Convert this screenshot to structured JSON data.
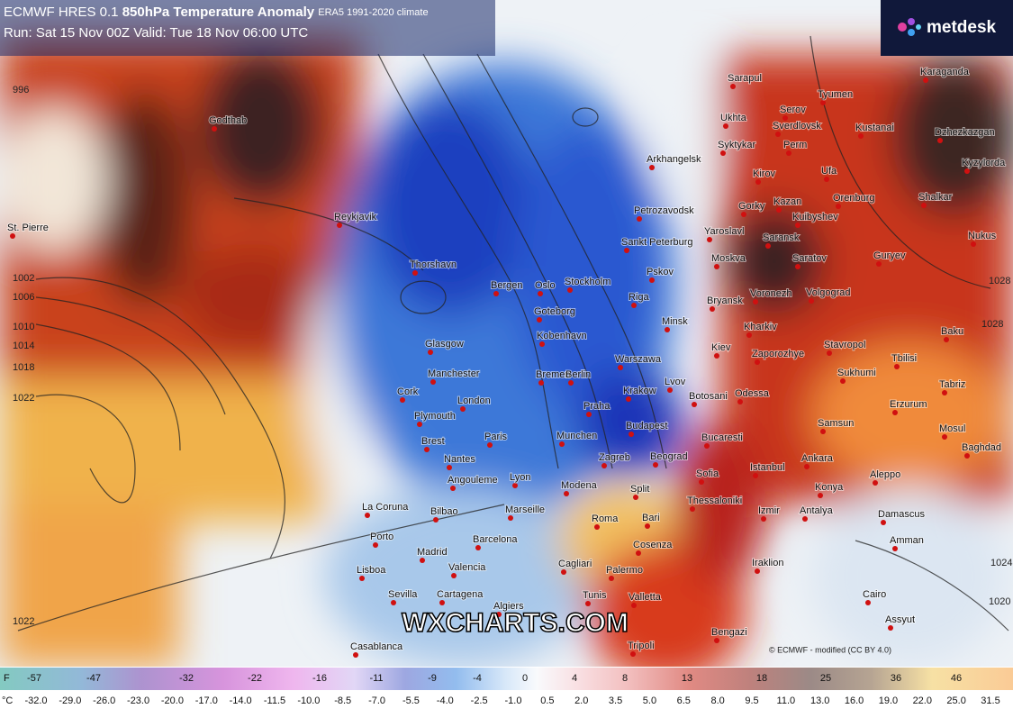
{
  "header": {
    "model": "ECMWF HRES 0.1",
    "title": "850hPa Temperature Anomaly",
    "climate": "ERA5 1991-2020 climate",
    "run": "Run: Sat 15 Nov 00Z Valid: Tue 18 Nov 06:00 UTC"
  },
  "logo": "metdesk",
  "watermark": "WXCHARTS.COM",
  "credit": "© ECMWF - modified (CC BY 4.0)",
  "cities": [
    "Sarapul",
    "Tyumen",
    "Karaganda",
    "Serov",
    "Ukhta",
    "Sverdlovsk",
    "Kustanai",
    "Dzhezkazgan",
    "Syktykar",
    "Perm",
    "Arkhangelsk",
    "Kyzylorda",
    "Kirov",
    "Ufa",
    "Kazan",
    "Orenburg",
    "Shalkar",
    "Petrozavodsk",
    "Gorky",
    "Kuibyshev",
    "Reykjavik",
    "St. Pierre",
    "Yaroslavl",
    "Sankt Peterburg",
    "Saransk",
    "Nukus",
    "Moskva",
    "Saratov",
    "Guryev",
    "Pskov",
    "Thorshavn",
    "Bergen",
    "Oslo",
    "Stockholm",
    "Riga",
    "Bryansk",
    "Voronezh",
    "Volgograd",
    "Goteborg",
    "Minsk",
    "Kharkiv",
    "Kobenhavn",
    "Glasgow",
    "Kiev",
    "Zaporozhye",
    "Stavropol",
    "Baku",
    "Manchester",
    "Bremen",
    "Berlin",
    "Warszawa",
    "Lvov",
    "Odessa",
    "Sukhumi",
    "Tbilisi",
    "Cork",
    "London",
    "Krakow",
    "Botosani",
    "Tabriz",
    "Plymouth",
    "Praha",
    "Erzurum",
    "Budapest",
    "Samsun",
    "Mosul",
    "Brest",
    "Paris",
    "Munchen",
    "Bucaresti",
    "Baghdad",
    "Nantes",
    "Zagreb",
    "Beograd",
    "Ankara",
    "Sofia",
    "Istanbul",
    "Angouleme",
    "Lyon",
    "Modena",
    "Split",
    "Aleppo",
    "Konya",
    "Thessaloniki",
    "Izmir",
    "Antalya",
    "La Coruna",
    "Bilbao",
    "Marseille",
    "Roma",
    "Bari",
    "Damascus",
    "Porto",
    "Barcelona",
    "Cosenza",
    "Amman",
    "Madrid",
    "Cagliari",
    "Palermo",
    "Iraklion",
    "Lisboa",
    "Valencia",
    "Sevilla",
    "Cartagena",
    "Tunis",
    "Valletta",
    "Cairo",
    "Algiers",
    "Assyut",
    "Casablanca",
    "Tripoli",
    "Bengazi",
    "Godthab"
  ],
  "isobar_labels": [
    "996",
    "1002",
    "1006",
    "1010",
    "1014",
    "1018",
    "1022",
    "1022",
    "1028",
    "1028",
    "1024",
    "1020"
  ],
  "legend": {
    "f_unit": "F",
    "f_labels": [
      "-57",
      "-47",
      "-32",
      "-22",
      "-16",
      "-11",
      "-9",
      "-4",
      "0",
      "4",
      "8",
      "13",
      "18",
      "25",
      "36",
      "46"
    ],
    "c_unit": "°C",
    "c_labels": [
      "-32.0",
      "-29.0",
      "-26.0",
      "-23.0",
      "-20.0",
      "-17.0",
      "-14.0",
      "-11.5",
      "-10.0",
      "-8.5",
      "-7.0",
      "-5.5",
      "-4.0",
      "-2.5",
      "-1.0",
      "0.5",
      "2.0",
      "3.5",
      "5.0",
      "6.5",
      "8.0",
      "9.5",
      "11.0",
      "13.0",
      "16.0",
      "19.0",
      "22.0",
      "25.0",
      "31.5"
    ]
  }
}
